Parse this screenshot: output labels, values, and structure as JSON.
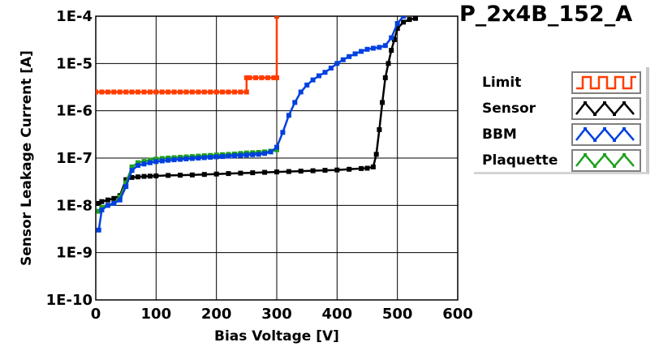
{
  "chart_data": {
    "type": "line",
    "title": "P_2x4B_152_A",
    "xlabel": "Bias Voltage [V]",
    "ylabel": "Sensor Leakage Current [A]",
    "xlim": [
      0,
      600
    ],
    "ylim": [
      1e-10,
      0.0001
    ],
    "y_scale": "log",
    "grid": true,
    "legend_position": "right",
    "x_ticks": [
      "0",
      "100",
      "200",
      "300",
      "400",
      "500",
      "600"
    ],
    "y_ticks": [
      "1E-10",
      "1E-9",
      "1E-8",
      "1E-7",
      "1E-6",
      "1E-5",
      "1E-4"
    ],
    "series": [
      {
        "name": "Limit",
        "color": "#ff3c00",
        "x": [
          0,
          10,
          20,
          30,
          40,
          50,
          60,
          70,
          80,
          90,
          100,
          110,
          120,
          130,
          140,
          150,
          160,
          170,
          180,
          190,
          200,
          210,
          220,
          230,
          240,
          250,
          250,
          255,
          265,
          275,
          285,
          295,
          300,
          300
        ],
        "y": [
          2.5e-06,
          2.5e-06,
          2.5e-06,
          2.5e-06,
          2.5e-06,
          2.5e-06,
          2.5e-06,
          2.5e-06,
          2.5e-06,
          2.5e-06,
          2.5e-06,
          2.5e-06,
          2.5e-06,
          2.5e-06,
          2.5e-06,
          2.5e-06,
          2.5e-06,
          2.5e-06,
          2.5e-06,
          2.5e-06,
          2.5e-06,
          2.5e-06,
          2.5e-06,
          2.5e-06,
          2.5e-06,
          2.5e-06,
          5e-06,
          5e-06,
          5e-06,
          5e-06,
          5e-06,
          5e-06,
          5e-06,
          0.0001
        ]
      },
      {
        "name": "Sensor",
        "color": "#000000",
        "x": [
          5,
          10,
          20,
          30,
          40,
          50,
          60,
          70,
          80,
          90,
          100,
          120,
          140,
          160,
          180,
          200,
          220,
          240,
          260,
          280,
          300,
          320,
          340,
          360,
          380,
          400,
          420,
          440,
          450,
          460,
          465,
          470,
          475,
          480,
          485,
          490,
          495,
          500,
          510,
          520,
          530
        ],
        "y": [
          1.1e-08,
          1.2e-08,
          1.3e-08,
          1.4e-08,
          1.6e-08,
          3.5e-08,
          3.9e-08,
          4e-08,
          4.1e-08,
          4.15e-08,
          4.2e-08,
          4.3e-08,
          4.35e-08,
          4.4e-08,
          4.5e-08,
          4.6e-08,
          4.7e-08,
          4.8e-08,
          4.9e-08,
          5e-08,
          5.1e-08,
          5.2e-08,
          5.3e-08,
          5.4e-08,
          5.5e-08,
          5.6e-08,
          5.8e-08,
          6e-08,
          6.1e-08,
          6.5e-08,
          1.2e-07,
          4e-07,
          1.5e-06,
          5e-06,
          1e-05,
          1.9e-05,
          3.2e-05,
          5.5e-05,
          7.5e-05,
          8.5e-05,
          9e-05
        ]
      },
      {
        "name": "BBM",
        "color": "#0040e0",
        "x": [
          5,
          10,
          20,
          30,
          40,
          50,
          60,
          70,
          80,
          90,
          100,
          110,
          120,
          130,
          140,
          150,
          160,
          170,
          180,
          190,
          200,
          210,
          220,
          230,
          240,
          250,
          260,
          270,
          280,
          290,
          300,
          310,
          320,
          330,
          340,
          350,
          360,
          370,
          380,
          390,
          400,
          410,
          420,
          430,
          440,
          450,
          460,
          470,
          480,
          490,
          500,
          510
        ],
        "y": [
          3e-09,
          8e-09,
          1e-08,
          1.1e-08,
          1.3e-08,
          2.5e-08,
          5.5e-08,
          7e-08,
          7.5e-08,
          8e-08,
          8.4e-08,
          8.7e-08,
          9e-08,
          9.2e-08,
          9.4e-08,
          9.6e-08,
          9.8e-08,
          1e-07,
          1.02e-07,
          1.04e-07,
          1.06e-07,
          1.08e-07,
          1.1e-07,
          1.12e-07,
          1.14e-07,
          1.16e-07,
          1.18e-07,
          1.2e-07,
          1.25e-07,
          1.35e-07,
          1.7e-07,
          3.5e-07,
          8e-07,
          1.5e-06,
          2.5e-06,
          3.5e-06,
          4.5e-06,
          5.5e-06,
          6.5e-06,
          8e-06,
          1e-05,
          1.2e-05,
          1.4e-05,
          1.6e-05,
          1.8e-05,
          2e-05,
          2.1e-05,
          2.2e-05,
          2.4e-05,
          3.5e-05,
          7e-05,
          0.0001
        ]
      },
      {
        "name": "Plaquette",
        "color": "#20a020",
        "x": [
          5,
          10,
          20,
          30,
          40,
          50,
          60,
          70,
          80,
          90,
          100,
          110,
          120,
          130,
          140,
          150,
          160,
          170,
          180,
          190,
          200,
          210,
          220,
          230,
          240,
          250,
          260,
          270,
          280,
          290,
          300
        ],
        "y": [
          7.5e-09,
          9e-09,
          1e-08,
          1.1e-08,
          1.5e-08,
          3e-08,
          6.5e-08,
          8e-08,
          8.5e-08,
          9e-08,
          9.5e-08,
          9.8e-08,
          1e-07,
          1.02e-07,
          1.04e-07,
          1.06e-07,
          1.08e-07,
          1.1e-07,
          1.12e-07,
          1.14e-07,
          1.16e-07,
          1.18e-07,
          1.2e-07,
          1.22e-07,
          1.25e-07,
          1.28e-07,
          1.3e-07,
          1.32e-07,
          1.35e-07,
          1.4e-07,
          1.5e-07
        ]
      }
    ]
  }
}
